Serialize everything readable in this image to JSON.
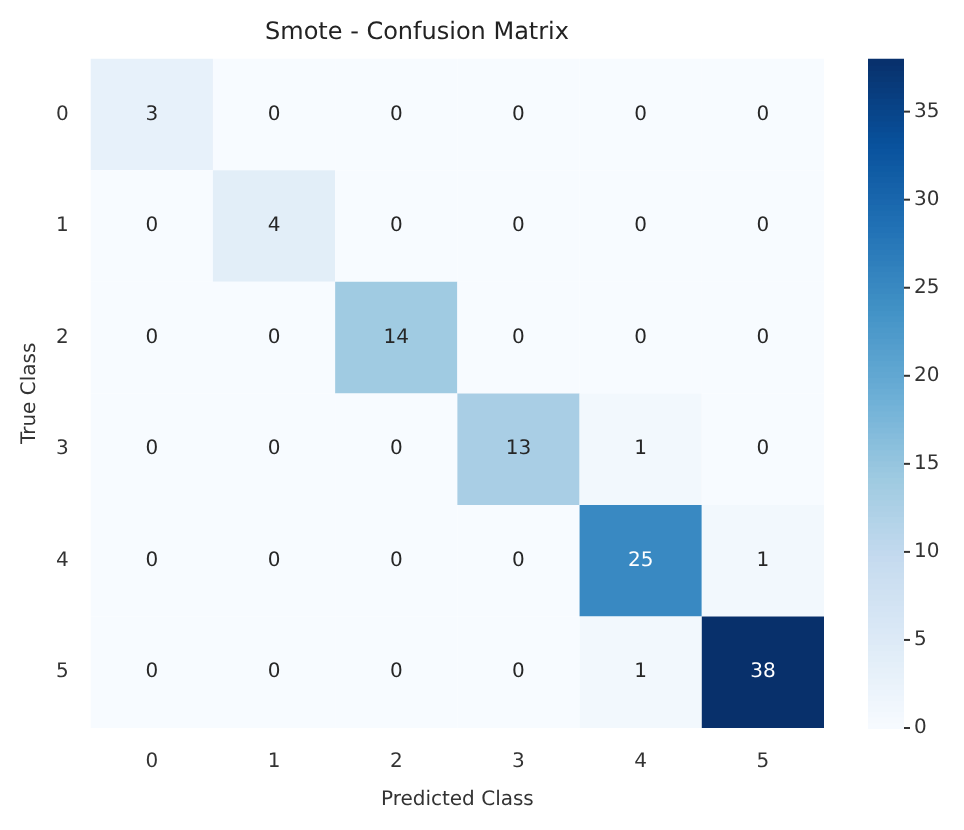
{
  "chart_data": {
    "type": "heatmap",
    "title": "Smote - Confusion Matrix",
    "xlabel": "Predicted Class",
    "ylabel": "True Class",
    "categories": [
      "0",
      "1",
      "2",
      "3",
      "4",
      "5"
    ],
    "y_categories": [
      "0",
      "1",
      "2",
      "3",
      "4",
      "5"
    ],
    "cells": [
      [
        3,
        0,
        0,
        0,
        0,
        0
      ],
      [
        0,
        4,
        0,
        0,
        0,
        0
      ],
      [
        0,
        0,
        14,
        0,
        0,
        0
      ],
      [
        0,
        0,
        0,
        13,
        1,
        0
      ],
      [
        0,
        0,
        0,
        0,
        25,
        1
      ],
      [
        0,
        0,
        0,
        0,
        1,
        38
      ]
    ],
    "clim": [
      0,
      38
    ],
    "cticks": [
      0,
      5,
      10,
      15,
      20,
      25,
      30,
      35
    ],
    "data_labels": true
  }
}
